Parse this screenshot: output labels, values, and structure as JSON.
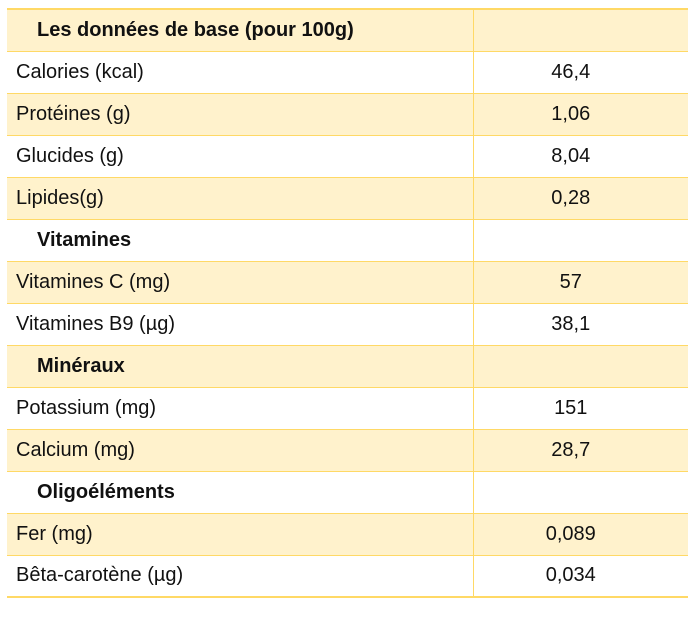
{
  "table": {
    "rows": [
      {
        "type": "section",
        "label": "Les données de base (pour 100g)",
        "value": ""
      },
      {
        "type": "item",
        "label": "Calories (kcal)",
        "value": "46,4"
      },
      {
        "type": "item",
        "label": "Protéines (g)",
        "value": "1,06"
      },
      {
        "type": "item",
        "label": "Glucides (g)",
        "value": "8,04"
      },
      {
        "type": "item",
        "label": "Lipides(g)",
        "value": "0,28"
      },
      {
        "type": "section",
        "label": "Vitamines",
        "value": ""
      },
      {
        "type": "item",
        "label": "Vitamines C (mg)",
        "value": "57"
      },
      {
        "type": "item",
        "label": "Vitamines B9 (µg)",
        "value": "38,1"
      },
      {
        "type": "section",
        "label": "Minéraux",
        "value": ""
      },
      {
        "type": "item",
        "label": "Potassium (mg)",
        "value": "151"
      },
      {
        "type": "item",
        "label": "Calcium (mg)",
        "value": "28,7"
      },
      {
        "type": "section",
        "label": "Oligoéléments",
        "value": ""
      },
      {
        "type": "item",
        "label": "Fer (mg)",
        "value": "0,089"
      },
      {
        "type": "item",
        "label": "Bêta-carotène (µg)",
        "value": "0,034"
      }
    ]
  },
  "colors": {
    "shade": "#fff2cc",
    "border": "#ffd966"
  }
}
